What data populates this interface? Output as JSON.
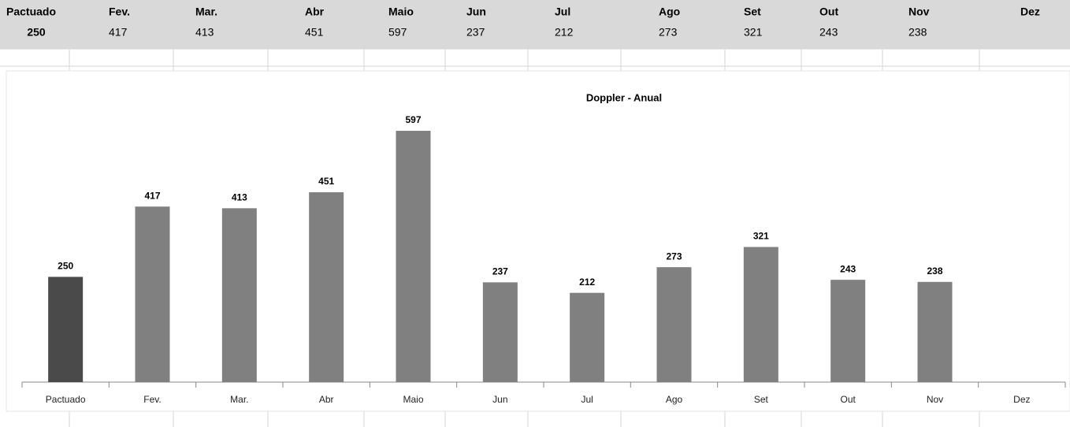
{
  "table": {
    "headers": [
      "Pactuado",
      "Fev.",
      "Mar.",
      "Abr",
      "Maio",
      "Jun",
      "Jul",
      "Ago",
      "Set",
      "Out",
      "Nov",
      "Dez"
    ],
    "values": [
      250,
      417,
      413,
      451,
      597,
      237,
      212,
      273,
      321,
      243,
      238,
      null
    ]
  },
  "chart_data": {
    "type": "bar",
    "title": "Doppler - Anual",
    "categories": [
      "Pactuado",
      "Fev.",
      "Mar.",
      "Abr",
      "Maio",
      "Jun",
      "Jul",
      "Ago",
      "Set",
      "Out",
      "Nov",
      "Dez"
    ],
    "values": [
      250,
      417,
      413,
      451,
      597,
      237,
      212,
      273,
      321,
      243,
      238,
      null
    ],
    "colors": [
      "#4a4a4a",
      "#808080",
      "#808080",
      "#808080",
      "#808080",
      "#808080",
      "#808080",
      "#808080",
      "#808080",
      "#808080",
      "#808080",
      "#808080"
    ],
    "ylim": [
      0,
      700
    ]
  }
}
